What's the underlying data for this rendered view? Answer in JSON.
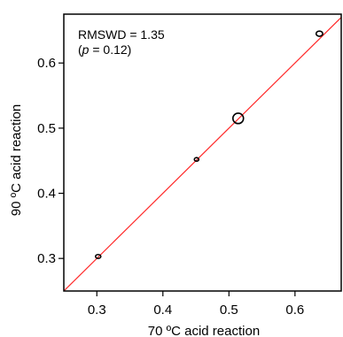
{
  "chart_data": {
    "type": "scatter",
    "xlabel": "70 ºC acid reaction",
    "ylabel": "90 ºC acid reaction",
    "xlim": [
      0.25,
      0.67
    ],
    "ylim": [
      0.25,
      0.675
    ],
    "xticks": [
      {
        "value": 0.3,
        "label": "0.3"
      },
      {
        "value": 0.4,
        "label": "0.4"
      },
      {
        "value": 0.5,
        "label": "0.5"
      },
      {
        "value": 0.6,
        "label": "0.6"
      }
    ],
    "yticks": [
      {
        "value": 0.3,
        "label": "0.3"
      },
      {
        "value": 0.4,
        "label": "0.4"
      },
      {
        "value": 0.5,
        "label": "0.5"
      },
      {
        "value": 0.6,
        "label": "0.6"
      }
    ],
    "points": [
      {
        "x": 0.302,
        "y": 0.303,
        "rx": 0.004,
        "ry": 0.003
      },
      {
        "x": 0.451,
        "y": 0.452,
        "rx": 0.003,
        "ry": 0.0025
      },
      {
        "x": 0.514,
        "y": 0.515,
        "rx": 0.008,
        "ry": 0.008
      },
      {
        "x": 0.637,
        "y": 0.645,
        "rx": 0.005,
        "ry": 0.004
      }
    ],
    "reference_line": {
      "slope": 1,
      "intercept": 0,
      "color": "#ff2a2a"
    },
    "annotation": {
      "line1": "RMSWD = 1.35",
      "line2_prefix": "(",
      "line2_italic": "p",
      "line2_suffix": " = 0.12)"
    },
    "grid": false,
    "legend": "none"
  }
}
